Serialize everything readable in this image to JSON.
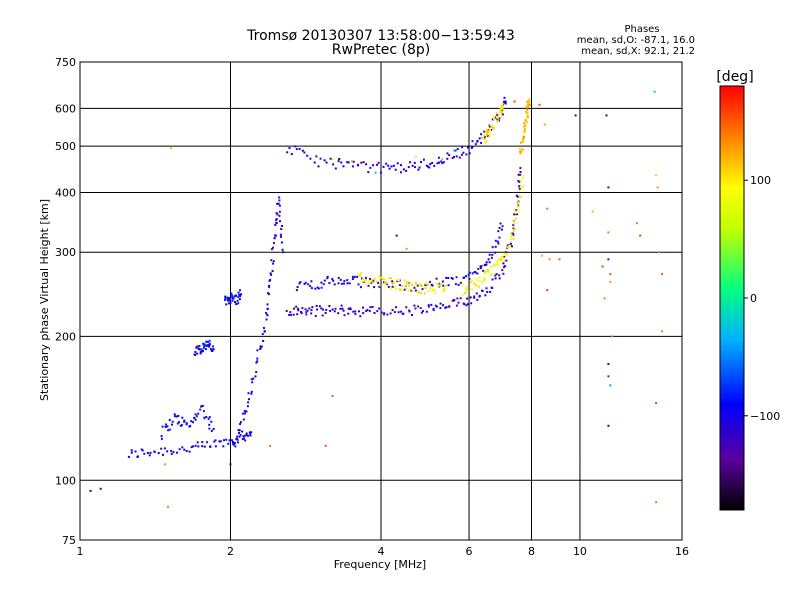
{
  "chart_data": {
    "type": "scatter",
    "title": "Tromsø 20130307 13:58:00−13:59:43",
    "subtitle": "RwPretec (8p)",
    "phases_header": "Phases",
    "phases_o": "mean, sd,O: -87.1, 16.0",
    "phases_x": "mean, sd,X:  92.1, 21.2",
    "xlabel": "Frequency [MHz]",
    "ylabel": "Stationary phase Virtual Height [km]",
    "x_scale": "log",
    "y_scale": "log",
    "xlim": [
      1,
      16
    ],
    "ylim": [
      75,
      750
    ],
    "x_ticks": [
      1,
      2,
      4,
      6,
      8,
      10,
      16
    ],
    "x_tick_labels": [
      "1",
      "2",
      "4",
      "6",
      "8",
      "10",
      "16"
    ],
    "y_ticks": [
      75,
      100,
      200,
      300,
      400,
      500,
      600,
      750
    ],
    "y_tick_labels": [
      "75",
      "100",
      "200",
      "300",
      "400",
      "500",
      "600",
      "750"
    ],
    "grid": true,
    "colorbar": {
      "label": "[deg]",
      "range": [
        -180,
        180
      ],
      "ticks": [
        100,
        0,
        -100
      ],
      "tick_labels": [
        "100",
        "0",
        "−100"
      ]
    },
    "series": [
      {
        "traces": [
          {
            "phase": -100,
            "x": [
              1.25,
              1.4,
              1.6,
              1.8,
              2.0,
              2.1,
              2.2
            ],
            "y": [
              113,
              115,
              116,
              118,
              121,
              123,
              126
            ]
          },
          {
            "phase": -95,
            "x": [
              1.45,
              1.55,
              1.65,
              1.75,
              1.85
            ],
            "y": [
              125,
              135,
              130,
              142,
              128
            ]
          },
          {
            "phase": -90,
            "x": [
              1.7,
              1.75,
              1.8,
              1.85
            ],
            "y": [
              185,
              190,
              192,
              188
            ]
          },
          {
            "phase": -90,
            "x": [
              1.95,
              2.0,
              2.05,
              2.1
            ],
            "y": [
              235,
              242,
              238,
              245
            ]
          },
          {
            "phase": -110,
            "x": [
              2.05,
              2.15,
              2.25,
              2.35,
              2.4,
              2.45,
              2.5,
              2.55
            ],
            "y": [
              120,
              140,
              175,
              210,
              260,
              320,
              390,
              300
            ]
          },
          {
            "phase": -115,
            "x": [
              2.6,
              2.8,
              3.0,
              3.3,
              3.6,
              4.0,
              4.5,
              5.0,
              5.5,
              6.0,
              6.5,
              7.0,
              7.3,
              7.5,
              7.6
            ],
            "y": [
              225,
              226,
              226,
              227,
              226,
              225,
              226,
              228,
              232,
              238,
              250,
              275,
              320,
              380,
              450
            ]
          },
          {
            "phase": -105,
            "x": [
              2.6,
              3.0,
              3.5,
              4.0,
              4.5,
              5.0,
              5.5,
              6.0,
              6.5,
              6.9,
              7.1
            ],
            "y": [
              495,
              465,
              455,
              450,
              452,
              460,
              475,
              495,
              530,
              580,
              620
            ]
          },
          {
            "phase": -100,
            "x": [
              2.7,
              3.0,
              3.3,
              3.6,
              4.0,
              4.6,
              5.2,
              5.8,
              6.3,
              6.7,
              7.0
            ],
            "y": [
              255,
              258,
              262,
              260,
              258,
              255,
              258,
              262,
              275,
              300,
              340
            ]
          }
        ]
      },
      {
        "traces": [
          {
            "phase": 95,
            "x": [
              3.6,
              3.9,
              4.2,
              4.5,
              4.8,
              5.1,
              5.4
            ],
            "y": [
              265,
              262,
              258,
              255,
              252,
              252,
              255
            ]
          },
          {
            "phase": 90,
            "x": [
              5.8,
              6.2,
              6.6,
              7.0,
              7.3,
              7.5,
              7.7
            ],
            "y": [
              250,
              258,
              270,
              290,
              320,
              370,
              430
            ]
          },
          {
            "phase": 120,
            "x": [
              7.6,
              7.7,
              7.8,
              7.85,
              7.9
            ],
            "y": [
              480,
              520,
              560,
              600,
              620
            ]
          },
          {
            "phase": 100,
            "x": [
              6.4,
              6.6,
              6.9,
              7.0
            ],
            "y": [
              515,
              540,
              580,
              600
            ]
          }
        ]
      }
    ],
    "sparse_points": [
      {
        "x": 1.1,
        "y": 96,
        "phase": -105
      },
      {
        "x": 1.05,
        "y": 95,
        "phase": -95
      },
      {
        "x": 1.5,
        "y": 88,
        "phase": 140
      },
      {
        "x": 1.52,
        "y": 495,
        "phase": 120
      },
      {
        "x": 1.48,
        "y": 108,
        "phase": 130
      },
      {
        "x": 2.0,
        "y": 108,
        "phase": -120
      },
      {
        "x": 2.4,
        "y": 118,
        "phase": 140
      },
      {
        "x": 3.1,
        "y": 118,
        "phase": 150
      },
      {
        "x": 3.2,
        "y": 150,
        "phase": 150
      },
      {
        "x": 3.2,
        "y": 470,
        "phase": 80
      },
      {
        "x": 3.3,
        "y": 470,
        "phase": -160
      },
      {
        "x": 3.5,
        "y": 465,
        "phase": 130
      },
      {
        "x": 3.9,
        "y": 440,
        "phase": -20
      },
      {
        "x": 4.3,
        "y": 325,
        "phase": -150
      },
      {
        "x": 4.5,
        "y": 305,
        "phase": 130
      },
      {
        "x": 4.7,
        "y": 475,
        "phase": 100
      },
      {
        "x": 5.3,
        "y": 470,
        "phase": 30
      },
      {
        "x": 5.6,
        "y": 490,
        "phase": -10
      },
      {
        "x": 7.4,
        "y": 620,
        "phase": 160
      },
      {
        "x": 8.3,
        "y": 610,
        "phase": 150
      },
      {
        "x": 8.5,
        "y": 555,
        "phase": 130
      },
      {
        "x": 8.6,
        "y": 370,
        "phase": 140
      },
      {
        "x": 8.4,
        "y": 295,
        "phase": 120
      },
      {
        "x": 8.7,
        "y": 290,
        "phase": 130
      },
      {
        "x": 9.1,
        "y": 290,
        "phase": 150
      },
      {
        "x": 8.6,
        "y": 250,
        "phase": 160
      },
      {
        "x": 9.8,
        "y": 580,
        "phase": -150
      },
      {
        "x": 10.0,
        "y": 112,
        "phase": 150
      },
      {
        "x": 10.6,
        "y": 365,
        "phase": 120
      },
      {
        "x": 11.1,
        "y": 280,
        "phase": 160
      },
      {
        "x": 11.2,
        "y": 240,
        "phase": 140
      },
      {
        "x": 11.3,
        "y": 580,
        "phase": -110
      },
      {
        "x": 11.4,
        "y": 410,
        "phase": -80
      },
      {
        "x": 11.4,
        "y": 330,
        "phase": 140
      },
      {
        "x": 11.4,
        "y": 290,
        "phase": -80
      },
      {
        "x": 11.5,
        "y": 270,
        "phase": 150
      },
      {
        "x": 11.5,
        "y": 260,
        "phase": 130
      },
      {
        "x": 11.4,
        "y": 175,
        "phase": -150
      },
      {
        "x": 11.4,
        "y": 165,
        "phase": -70
      },
      {
        "x": 11.5,
        "y": 158,
        "phase": -40
      },
      {
        "x": 11.4,
        "y": 130,
        "phase": -100
      },
      {
        "x": 11.6,
        "y": 200,
        "phase": 140
      },
      {
        "x": 13.0,
        "y": 345,
        "phase": 140
      },
      {
        "x": 13.2,
        "y": 325,
        "phase": 160
      },
      {
        "x": 14.1,
        "y": 650,
        "phase": -20
      },
      {
        "x": 14.2,
        "y": 435,
        "phase": 110
      },
      {
        "x": 14.3,
        "y": 410,
        "phase": 130
      },
      {
        "x": 14.4,
        "y": 300,
        "phase": 140
      },
      {
        "x": 14.6,
        "y": 270,
        "phase": 150
      },
      {
        "x": 14.6,
        "y": 205,
        "phase": 140
      },
      {
        "x": 14.2,
        "y": 145,
        "phase": 160
      },
      {
        "x": 14.2,
        "y": 90,
        "phase": 140
      }
    ]
  }
}
